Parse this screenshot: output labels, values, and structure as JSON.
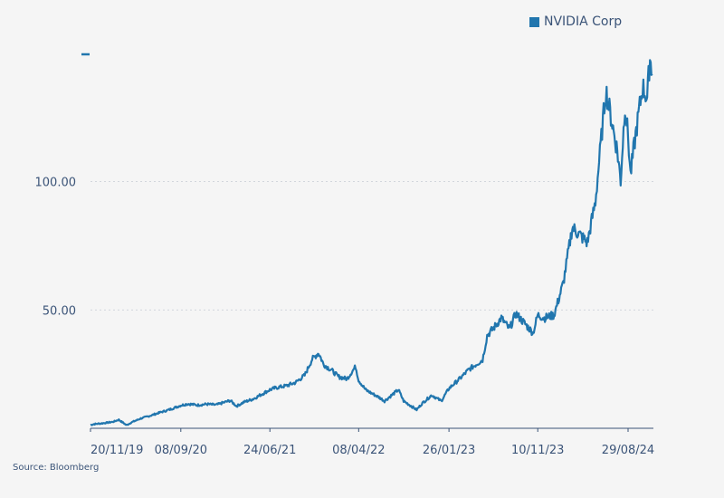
{
  "chart_data": {
    "type": "line",
    "title": "",
    "xlabel": "",
    "ylabel": "",
    "x_ticks": [
      "20/11/19",
      "08/09/20",
      "24/06/21",
      "08/04/22",
      "26/01/23",
      "10/11/23",
      "29/08/24"
    ],
    "y_ticks": [
      {
        "value": 50,
        "label": "50.00"
      },
      {
        "value": 100,
        "label": "100.00"
      }
    ],
    "ylim": [
      4,
      153
    ],
    "grid": "horizontal dotted",
    "legend_position": "top-right",
    "series": [
      {
        "name": "NVIDIA Corp",
        "color": "#2176ae",
        "points": [
          [
            "20/11/19",
            5.3
          ],
          [
            "01/12/19",
            5.6
          ],
          [
            "01/01/20",
            6.0
          ],
          [
            "01/02/20",
            6.5
          ],
          [
            "20/02/20",
            7.3
          ],
          [
            "16/03/20",
            5.2
          ],
          [
            "01/04/20",
            6.3
          ],
          [
            "01/05/20",
            7.8
          ],
          [
            "01/06/20",
            8.9
          ],
          [
            "01/07/20",
            10.1
          ],
          [
            "01/08/20",
            11.2
          ],
          [
            "08/09/20",
            12.9
          ],
          [
            "01/10/20",
            13.5
          ],
          [
            "01/11/20",
            13.0
          ],
          [
            "01/12/20",
            13.4
          ],
          [
            "01/01/21",
            13.1
          ],
          [
            "15/02/21",
            14.8
          ],
          [
            "08/03/21",
            12.6
          ],
          [
            "01/04/21",
            14.2
          ],
          [
            "01/05/21",
            15.4
          ],
          [
            "24/06/21",
            19.0
          ],
          [
            "15/07/21",
            19.8
          ],
          [
            "15/08/21",
            20.5
          ],
          [
            "15/09/21",
            21.8
          ],
          [
            "15/10/21",
            24.6
          ],
          [
            "08/11/21",
            30.9
          ],
          [
            "29/11/21",
            33.3
          ],
          [
            "15/12/21",
            28.9
          ],
          [
            "10/01/22",
            26.6
          ],
          [
            "01/02/22",
            24.1
          ],
          [
            "01/03/22",
            23.2
          ],
          [
            "29/03/22",
            28.0
          ],
          [
            "08/04/22",
            22.7
          ],
          [
            "01/05/22",
            18.9
          ],
          [
            "15/06/22",
            15.9
          ],
          [
            "01/07/22",
            14.6
          ],
          [
            "15/08/22",
            19.0
          ],
          [
            "01/09/22",
            14.6
          ],
          [
            "13/10/22",
            11.2
          ],
          [
            "01/11/22",
            13.8
          ],
          [
            "01/12/22",
            16.9
          ],
          [
            "01/01/23",
            14.6
          ],
          [
            "26/01/23",
            19.5
          ],
          [
            "01/03/23",
            23.2
          ],
          [
            "01/04/23",
            26.9
          ],
          [
            "15/05/23",
            30.6
          ],
          [
            "30/05/23",
            40.1
          ],
          [
            "20/06/23",
            43.0
          ],
          [
            "15/07/23",
            46.9
          ],
          [
            "10/08/23",
            42.6
          ],
          [
            "31/08/23",
            48.6
          ],
          [
            "26/10/23",
            41.1
          ],
          [
            "10/11/23",
            48.1
          ],
          [
            "01/12/23",
            46.9
          ],
          [
            "02/01/24",
            48.1
          ],
          [
            "01/02/24",
            60.5
          ],
          [
            "01/03/24",
            82.2
          ],
          [
            "19/04/24",
            76.2
          ],
          [
            "15/05/24",
            92.2
          ],
          [
            "18/06/24",
            135.6
          ],
          [
            "25/07/24",
            112.0
          ],
          [
            "05/08/24",
            100.3
          ],
          [
            "19/08/24",
            130.0
          ],
          [
            "29/08/24",
            117.6
          ],
          [
            "06/09/24",
            102.6
          ],
          [
            "20/09/24",
            116.0
          ],
          [
            "15/10/24",
            136.8
          ],
          [
            "30/10/24",
            132.6
          ],
          [
            "08/11/24",
            148.1
          ],
          [
            "15/11/24",
            141.9
          ]
        ]
      }
    ]
  },
  "legend": {
    "label": "NVIDIA Corp",
    "color": "#2176ae"
  },
  "source": "Source: Bloomberg"
}
